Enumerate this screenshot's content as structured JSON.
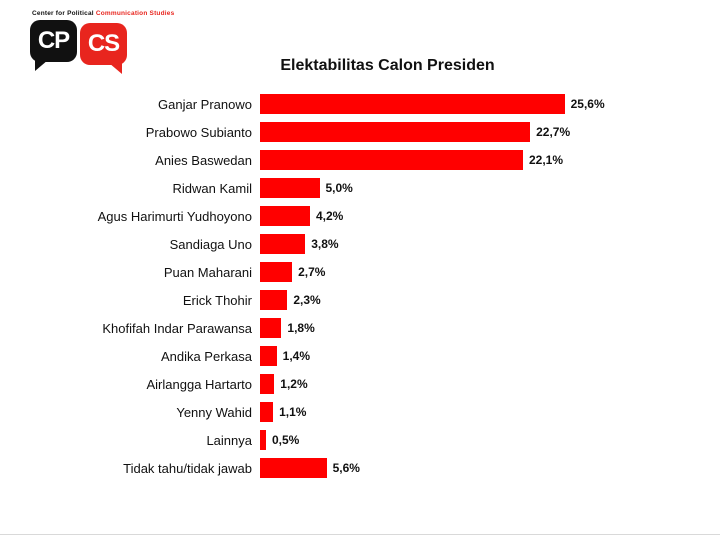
{
  "logo": {
    "tagline_black": "Center for Political",
    "tagline_red": "Communication Studies",
    "cp_text": "CP",
    "cs_text": "CS",
    "black_color": "#111111",
    "red_color": "#e8251e"
  },
  "chart_data": {
    "type": "bar",
    "orientation": "horizontal",
    "title": "Elektabilitas Calon Presiden",
    "categories": [
      "Ganjar Pranowo",
      "Prabowo Subianto",
      "Anies Baswedan",
      "Ridwan Kamil",
      "Agus Harimurti Yudhoyono",
      "Sandiaga Uno",
      "Puan Maharani",
      "Erick Thohir",
      "Khofifah Indar Parawansa",
      "Andika Perkasa",
      "Airlangga Hartarto",
      "Yenny Wahid",
      "Lainnya",
      "Tidak tahu/tidak jawab"
    ],
    "values": [
      25.6,
      22.7,
      22.1,
      5.0,
      4.2,
      3.8,
      2.7,
      2.3,
      1.8,
      1.4,
      1.2,
      1.1,
      0.5,
      5.6
    ],
    "value_labels": [
      "25,6%",
      "22,7%",
      "22,1%",
      "5,0%",
      "4,2%",
      "3,8%",
      "2,7%",
      "2,3%",
      "1,8%",
      "1,4%",
      "1,2%",
      "1,1%",
      "0,5%",
      "5,6%"
    ],
    "bar_color": "#ff0000",
    "xlim": [
      0,
      30
    ],
    "grid": false,
    "legend": false
  }
}
